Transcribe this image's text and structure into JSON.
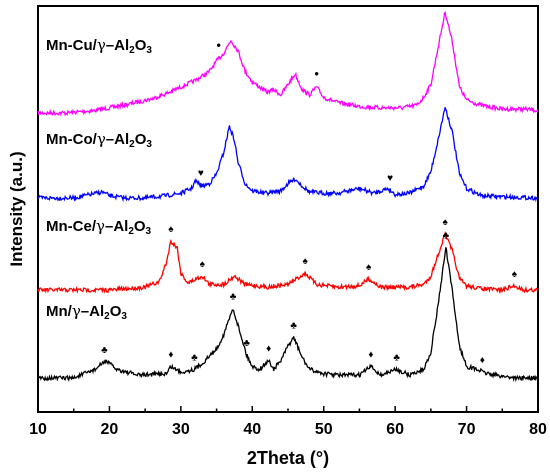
{
  "chart_data": {
    "type": "line",
    "title": "",
    "xlabel": "2Theta (°)",
    "ylabel": "Intensity (a.u.)",
    "xlim": [
      10,
      80
    ],
    "x_ticks": [
      "10",
      "20",
      "30",
      "40",
      "50",
      "60",
      "70",
      "80"
    ],
    "y_ticks_shown": false,
    "legend": "none (series labelled inline above each trace)",
    "grid": false,
    "series": [
      {
        "name": "Mn-Cu/γ–Al₂O₃",
        "color": "#ff00ff",
        "x": [
          10,
          14,
          18,
          22,
          26,
          28,
          30,
          32,
          34,
          35,
          36,
          37,
          38,
          39,
          40,
          41,
          42,
          43,
          44,
          45,
          46,
          47,
          48,
          49,
          50,
          52,
          55,
          58,
          61,
          63,
          64,
          65,
          66,
          67,
          68,
          69,
          70,
          72,
          75,
          78,
          80
        ],
        "y": [
          0.0,
          0.0,
          0.02,
          0.06,
          0.11,
          0.15,
          0.2,
          0.25,
          0.32,
          0.4,
          0.46,
          0.56,
          0.48,
          0.32,
          0.24,
          0.2,
          0.16,
          0.18,
          0.14,
          0.22,
          0.3,
          0.18,
          0.14,
          0.2,
          0.12,
          0.08,
          0.05,
          0.04,
          0.04,
          0.06,
          0.12,
          0.22,
          0.5,
          0.78,
          0.55,
          0.2,
          0.1,
          0.06,
          0.03,
          0.03,
          0.02
        ],
        "marker_symbol": "•",
        "markers_at": [
          35.3,
          49.0
        ]
      },
      {
        "name": "Mn-Co/γ–Al₂O₃",
        "color": "#0000ff",
        "x": [
          10,
          15,
          19,
          20,
          22,
          25,
          28,
          30,
          31.5,
          32,
          33,
          34,
          35,
          36,
          36.8,
          37.5,
          38,
          39,
          40,
          42,
          44,
          45,
          46,
          47,
          48,
          50,
          52,
          55,
          57,
          59,
          60,
          62,
          64,
          65,
          66,
          67,
          68,
          69,
          70,
          72,
          75,
          80
        ],
        "y": [
          0.0,
          0.0,
          0.05,
          0.02,
          0.0,
          0.0,
          0.02,
          0.04,
          0.08,
          0.14,
          0.1,
          0.12,
          0.2,
          0.38,
          0.6,
          0.48,
          0.3,
          0.12,
          0.06,
          0.04,
          0.06,
          0.12,
          0.16,
          0.1,
          0.05,
          0.04,
          0.04,
          0.08,
          0.04,
          0.08,
          0.03,
          0.04,
          0.1,
          0.22,
          0.48,
          0.76,
          0.55,
          0.2,
          0.08,
          0.02,
          0.01,
          0.0
        ],
        "marker_symbol": "♥",
        "markers_at": [
          32.8,
          59.3
        ]
      },
      {
        "name": "Mn-Ce/γ–Al₂O₃",
        "color": "#ff0000",
        "x": [
          10,
          15,
          20,
          25,
          27,
          28,
          28.6,
          29.5,
          30,
          31,
          33,
          34,
          36,
          37.5,
          39,
          42,
          45,
          47.4,
          49,
          52,
          55,
          56.3,
          58,
          62,
          64,
          65,
          66,
          67,
          68,
          69,
          70,
          72,
          75,
          76.7,
          78,
          80
        ],
        "y": [
          0.0,
          0.0,
          0.0,
          0.02,
          0.06,
          0.2,
          0.35,
          0.3,
          0.12,
          0.05,
          0.1,
          0.04,
          0.04,
          0.1,
          0.04,
          0.02,
          0.04,
          0.12,
          0.04,
          0.02,
          0.03,
          0.08,
          0.02,
          0.02,
          0.04,
          0.1,
          0.25,
          0.4,
          0.28,
          0.08,
          0.03,
          0.01,
          0.0,
          0.03,
          0.0,
          0.0
        ],
        "marker_symbol": "♠",
        "markers_at": [
          28.6,
          33.0,
          47.4,
          56.3,
          67.0,
          76.7
        ]
      },
      {
        "name": "Mn/γ–Al₂O₃",
        "color": "#000000",
        "x": [
          10,
          15,
          18,
          19.5,
          21,
          24,
          28,
          28.6,
          30,
          31.9,
          33,
          35,
          36,
          37.3,
          38.5,
          39.2,
          40,
          41,
          42.3,
          43,
          44,
          45,
          45.8,
          47,
          48,
          50,
          52,
          55,
          56.6,
          58,
          60.2,
          62,
          64,
          65,
          66,
          67.1,
          68,
          69,
          70,
          72,
          72.2,
          74,
          77,
          80
        ],
        "y": [
          0.0,
          0.0,
          0.06,
          0.12,
          0.06,
          0.02,
          0.03,
          0.08,
          0.04,
          0.06,
          0.1,
          0.2,
          0.3,
          0.48,
          0.28,
          0.16,
          0.08,
          0.06,
          0.12,
          0.06,
          0.12,
          0.22,
          0.28,
          0.14,
          0.06,
          0.03,
          0.02,
          0.02,
          0.08,
          0.02,
          0.06,
          0.02,
          0.06,
          0.18,
          0.5,
          0.9,
          0.6,
          0.22,
          0.08,
          0.05,
          0.04,
          0.02,
          0.0,
          0.0
        ],
        "marker_symbol": "♣ / ♦",
        "markers_clubs_at": [
          19.3,
          31.9,
          37.3,
          39.2,
          45.8,
          60.2,
          67.1
        ],
        "markers_diamonds_at": [
          28.6,
          42.3,
          56.6,
          72.2
        ]
      }
    ]
  },
  "labels": {
    "cu": {
      "prefix": "Mn-Cu/",
      "gamma": "γ",
      "dash": "–",
      "al": "Al",
      "sub1": "2",
      "o": "O",
      "sub2": "3"
    },
    "co": {
      "prefix": "Mn-Co/",
      "gamma": "γ",
      "dash": "–",
      "al": "Al",
      "sub1": "2",
      "o": "O",
      "sub2": "3"
    },
    "ce": {
      "prefix": "Mn-Ce/",
      "gamma": "γ",
      "dash": "–",
      "al": "Al",
      "sub1": "2",
      "o": "O",
      "sub2": "3"
    },
    "mn": {
      "prefix": "Mn/",
      "gamma": "γ",
      "dash": "–",
      "al": "Al",
      "sub1": "2",
      "o": "O",
      "sub2": "3"
    }
  },
  "symbols": {
    "dot": "•",
    "heart": "♥",
    "spade": "♠",
    "club": "♣",
    "diamond": "♦"
  }
}
